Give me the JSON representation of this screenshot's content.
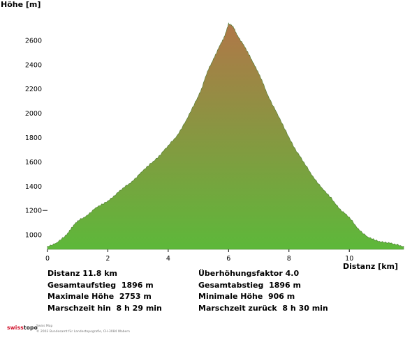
{
  "chart_data": {
    "type": "area",
    "title": "",
    "ylabel": "Höhe [m]",
    "xlabel": "Distanz [km]",
    "xlim": [
      0,
      11.8
    ],
    "ylim": [
      880,
      2760
    ],
    "x_ticks": [
      "0",
      "2",
      "4",
      "6",
      "8",
      "10"
    ],
    "x_tick_values": [
      0,
      2,
      4,
      6,
      8,
      10
    ],
    "y_ticks": [
      "1000",
      "1200",
      "1400",
      "1600",
      "1800",
      "2000",
      "2200",
      "2400",
      "2600"
    ],
    "y_tick_values": [
      1000,
      1200,
      1400,
      1600,
      1800,
      2000,
      2200,
      2400,
      2600
    ],
    "grid": false,
    "fill_gradient": {
      "top": "#b07748",
      "bottom": "#5db83a"
    },
    "x": [
      0,
      0.3,
      0.6,
      0.8,
      1.0,
      1.3,
      1.6,
      1.9,
      2.2,
      2.5,
      2.8,
      3.1,
      3.4,
      3.7,
      4.0,
      4.3,
      4.6,
      4.9,
      5.1,
      5.3,
      5.5,
      5.7,
      5.85,
      6.0,
      6.15,
      6.3,
      6.5,
      6.7,
      6.9,
      7.1,
      7.3,
      7.6,
      7.9,
      8.2,
      8.5,
      8.8,
      9.1,
      9.4,
      9.7,
      10.0,
      10.3,
      10.6,
      10.9,
      11.2,
      11.5,
      11.8
    ],
    "y": [
      906,
      930,
      990,
      1060,
      1110,
      1160,
      1220,
      1260,
      1320,
      1380,
      1440,
      1510,
      1580,
      1650,
      1730,
      1820,
      1940,
      2090,
      2200,
      2340,
      2450,
      2550,
      2620,
      2740,
      2710,
      2640,
      2560,
      2470,
      2380,
      2270,
      2150,
      2000,
      1850,
      1710,
      1590,
      1480,
      1380,
      1300,
      1210,
      1140,
      1050,
      980,
      950,
      940,
      920,
      906
    ]
  },
  "stats_left": [
    {
      "label": "Distanz",
      "value": "11.8 km"
    },
    {
      "label": "Gesamtaufstieg",
      "value": "1896 m"
    },
    {
      "label": "Maximale Höhe",
      "value": "2753 m"
    },
    {
      "label": "Marschzeit hin",
      "value": "8 h 29 min"
    }
  ],
  "stats_right": [
    {
      "label": "Überhöhungsfaktor",
      "value": "4.0"
    },
    {
      "label": "Gesamtabstieg",
      "value": "1896 m"
    },
    {
      "label": "Minimale Höhe",
      "value": "906 m"
    },
    {
      "label": "Marschzeit zurück",
      "value": "8 h 30 min"
    }
  ],
  "footer": {
    "logo_swiss": "swiss",
    "logo_topo": "topo",
    "line1": "Swiss Map",
    "line2": "© 2003 Bundesamt für Landestopografie, CH-3084 Wabern"
  }
}
